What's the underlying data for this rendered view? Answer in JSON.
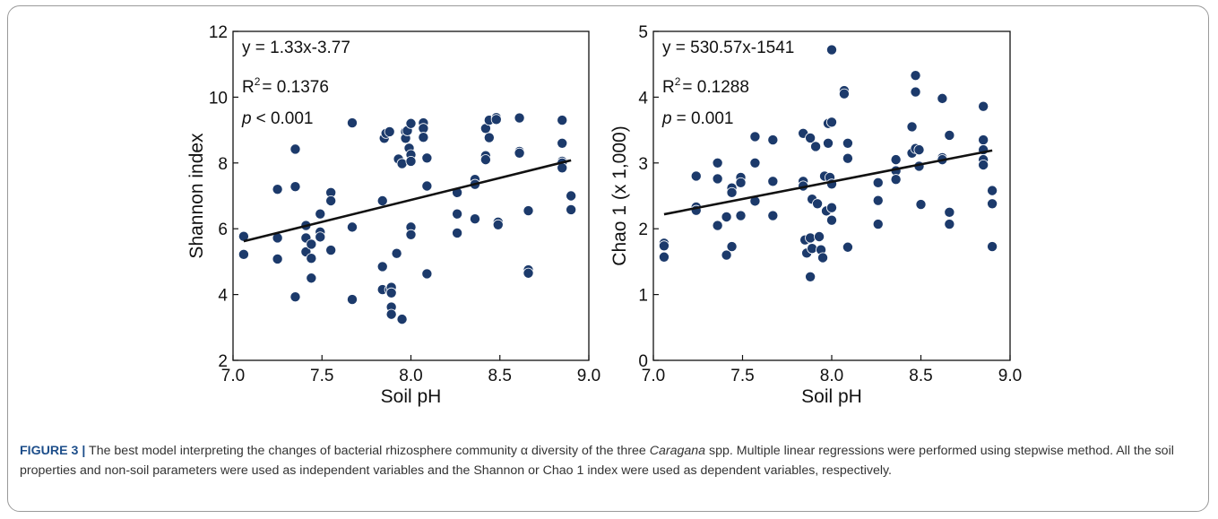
{
  "chart_data": [
    {
      "type": "scatter",
      "xlabel": "Soil pH",
      "ylabel": "Shannon index",
      "xlim": [
        7.0,
        9.0
      ],
      "ylim": [
        2,
        12
      ],
      "xticks": [
        "7.0",
        "7.5",
        "8.0",
        "8.5",
        "9.0"
      ],
      "yticks": [
        "2",
        "4",
        "6",
        "8",
        "10",
        "12"
      ],
      "annotations": {
        "equation": "y = 1.33x-3.77",
        "r2_label": "R",
        "r2_sup": "2",
        "r2_value": "= 0.1376",
        "p_label": "p",
        "p_value": "< 0.001"
      },
      "fit_line": {
        "x": [
          7.06,
          8.9
        ],
        "y": [
          5.62,
          8.08
        ]
      },
      "grid": false,
      "legend": "none",
      "point_color": "#1c3a6b",
      "points": [
        [
          7.06,
          5.77
        ],
        [
          7.06,
          5.22
        ],
        [
          7.25,
          7.2
        ],
        [
          7.25,
          5.72
        ],
        [
          7.25,
          5.08
        ],
        [
          7.35,
          8.42
        ],
        [
          7.35,
          7.28
        ],
        [
          7.35,
          3.93
        ],
        [
          7.41,
          6.1
        ],
        [
          7.41,
          5.72
        ],
        [
          7.41,
          5.3
        ],
        [
          7.44,
          5.53
        ],
        [
          7.44,
          5.1
        ],
        [
          7.44,
          4.5
        ],
        [
          7.49,
          6.45
        ],
        [
          7.49,
          5.9
        ],
        [
          7.49,
          5.75
        ],
        [
          7.55,
          7.1
        ],
        [
          7.55,
          6.85
        ],
        [
          7.55,
          5.35
        ],
        [
          7.67,
          9.22
        ],
        [
          7.67,
          6.05
        ],
        [
          7.67,
          3.85
        ],
        [
          7.84,
          6.85
        ],
        [
          7.84,
          4.85
        ],
        [
          7.84,
          4.15
        ],
        [
          7.85,
          8.75
        ],
        [
          7.86,
          8.9
        ],
        [
          7.88,
          8.95
        ],
        [
          7.88,
          4.15
        ],
        [
          7.89,
          4.22
        ],
        [
          7.89,
          4.05
        ],
        [
          7.89,
          3.62
        ],
        [
          7.89,
          3.4
        ],
        [
          7.92,
          5.25
        ],
        [
          7.93,
          8.12
        ],
        [
          7.95,
          7.98
        ],
        [
          7.95,
          3.25
        ],
        [
          7.97,
          8.95
        ],
        [
          7.97,
          8.75
        ],
        [
          7.98,
          8.98
        ],
        [
          7.99,
          8.45
        ],
        [
          8.0,
          9.2
        ],
        [
          8.0,
          8.25
        ],
        [
          8.0,
          8.05
        ],
        [
          8.0,
          6.05
        ],
        [
          8.0,
          5.82
        ],
        [
          8.07,
          9.22
        ],
        [
          8.07,
          9.05
        ],
        [
          8.07,
          8.78
        ],
        [
          8.09,
          8.15
        ],
        [
          8.09,
          7.3
        ],
        [
          8.09,
          4.63
        ],
        [
          8.26,
          7.1
        ],
        [
          8.26,
          6.45
        ],
        [
          8.26,
          5.87
        ],
        [
          8.36,
          7.5
        ],
        [
          8.36,
          7.35
        ],
        [
          8.36,
          6.3
        ],
        [
          8.42,
          9.05
        ],
        [
          8.42,
          8.22
        ],
        [
          8.42,
          8.1
        ],
        [
          8.44,
          9.3
        ],
        [
          8.44,
          8.77
        ],
        [
          8.48,
          9.38
        ],
        [
          8.48,
          9.32
        ],
        [
          8.49,
          6.2
        ],
        [
          8.49,
          6.12
        ],
        [
          8.61,
          9.37
        ],
        [
          8.61,
          8.35
        ],
        [
          8.61,
          8.3
        ],
        [
          8.66,
          6.55
        ],
        [
          8.66,
          4.75
        ],
        [
          8.66,
          4.65
        ],
        [
          8.85,
          9.3
        ],
        [
          8.85,
          8.6
        ],
        [
          8.85,
          8.05
        ],
        [
          8.85,
          8.0
        ],
        [
          8.85,
          7.85
        ],
        [
          8.9,
          7.0
        ],
        [
          8.9,
          6.58
        ]
      ]
    },
    {
      "type": "scatter",
      "xlabel": "Soil pH",
      "ylabel": "Chao 1 (x 1,000)",
      "xlim": [
        7.0,
        9.0
      ],
      "ylim": [
        0,
        5
      ],
      "xticks": [
        "7.0",
        "7.5",
        "8.0",
        "8.5",
        "9.0"
      ],
      "yticks": [
        "0",
        "1",
        "2",
        "3",
        "4",
        "5"
      ],
      "annotations": {
        "equation": "y = 530.57x-1541",
        "r2_label": "R",
        "r2_sup": "2",
        "r2_value": "= 0.1288",
        "p_label": "p",
        "p_value": "= 0.001"
      },
      "fit_line": {
        "x": [
          7.06,
          8.9
        ],
        "y": [
          2.22,
          3.19
        ]
      },
      "grid": false,
      "legend": "none",
      "point_color": "#1c3a6b",
      "points": [
        [
          7.06,
          1.78
        ],
        [
          7.06,
          1.74
        ],
        [
          7.06,
          1.57
        ],
        [
          7.24,
          2.8
        ],
        [
          7.24,
          2.33
        ],
        [
          7.24,
          2.28
        ],
        [
          7.36,
          3.0
        ],
        [
          7.36,
          2.76
        ],
        [
          7.36,
          2.05
        ],
        [
          7.41,
          2.18
        ],
        [
          7.41,
          1.6
        ],
        [
          7.44,
          2.62
        ],
        [
          7.44,
          2.55
        ],
        [
          7.44,
          1.73
        ],
        [
          7.49,
          2.78
        ],
        [
          7.49,
          2.7
        ],
        [
          7.49,
          2.2
        ],
        [
          7.57,
          3.4
        ],
        [
          7.57,
          3.0
        ],
        [
          7.57,
          2.42
        ],
        [
          7.67,
          3.35
        ],
        [
          7.67,
          2.72
        ],
        [
          7.67,
          2.2
        ],
        [
          7.84,
          3.45
        ],
        [
          7.84,
          2.72
        ],
        [
          7.84,
          2.65
        ],
        [
          7.85,
          1.83
        ],
        [
          7.86,
          1.63
        ],
        [
          7.88,
          3.38
        ],
        [
          7.88,
          1.86
        ],
        [
          7.88,
          1.27
        ],
        [
          7.89,
          1.7
        ],
        [
          7.89,
          2.45
        ],
        [
          7.91,
          3.25
        ],
        [
          7.92,
          2.38
        ],
        [
          7.93,
          1.88
        ],
        [
          7.94,
          1.68
        ],
        [
          7.95,
          1.56
        ],
        [
          7.96,
          2.8
        ],
        [
          7.97,
          2.27
        ],
        [
          7.98,
          3.6
        ],
        [
          7.98,
          3.3
        ],
        [
          7.99,
          2.78
        ],
        [
          8.0,
          4.72
        ],
        [
          8.0,
          3.62
        ],
        [
          8.0,
          2.68
        ],
        [
          8.0,
          2.13
        ],
        [
          8.0,
          2.32
        ],
        [
          8.07,
          4.1
        ],
        [
          8.07,
          4.05
        ],
        [
          8.09,
          3.3
        ],
        [
          8.09,
          3.07
        ],
        [
          8.09,
          1.72
        ],
        [
          8.26,
          2.7
        ],
        [
          8.26,
          2.43
        ],
        [
          8.26,
          2.07
        ],
        [
          8.36,
          3.05
        ],
        [
          8.36,
          2.88
        ],
        [
          8.36,
          2.75
        ],
        [
          8.45,
          3.55
        ],
        [
          8.45,
          3.15
        ],
        [
          8.47,
          4.33
        ],
        [
          8.47,
          4.08
        ],
        [
          8.47,
          3.22
        ],
        [
          8.49,
          3.2
        ],
        [
          8.49,
          2.95
        ],
        [
          8.5,
          2.37
        ],
        [
          8.62,
          3.98
        ],
        [
          8.62,
          3.08
        ],
        [
          8.62,
          3.05
        ],
        [
          8.66,
          3.42
        ],
        [
          8.66,
          2.25
        ],
        [
          8.66,
          2.07
        ],
        [
          8.85,
          3.86
        ],
        [
          8.85,
          3.35
        ],
        [
          8.85,
          3.2
        ],
        [
          8.85,
          3.05
        ],
        [
          8.85,
          2.97
        ],
        [
          8.9,
          2.58
        ],
        [
          8.9,
          2.38
        ],
        [
          8.9,
          1.73
        ]
      ]
    }
  ],
  "caption": {
    "label": "FIGURE 3 |",
    "text_before": " The best model interpreting the changes of bacterial rhizosphere community α diversity of the three ",
    "italic": "Caragana",
    "text_after": " spp. Multiple linear regressions were performed using stepwise method. All the soil properties and non-soil parameters were used as independent variables and the Shannon or Chao 1 index were used as dependent variables, respectively."
  }
}
